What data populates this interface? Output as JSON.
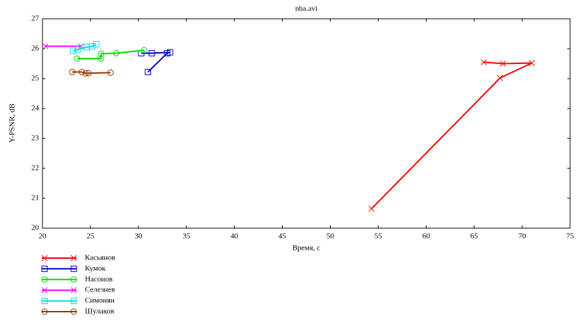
{
  "chart_data": {
    "type": "line",
    "title": "nba.avi",
    "x_label": "Время, с",
    "y_label": "Y-PSNR, dB",
    "xlim": [
      20,
      75
    ],
    "xticks": [
      20,
      25,
      30,
      35,
      40,
      45,
      50,
      55,
      60,
      65,
      70,
      75
    ],
    "ylim": [
      20,
      27
    ],
    "yticks": [
      20,
      21,
      22,
      23,
      24,
      25,
      26,
      27
    ],
    "grid": false,
    "legend": "bottom-left",
    "series": [
      {
        "name": "Касьянов",
        "color": "#ff0000",
        "marker": "x",
        "x": [
          54.3,
          67.7,
          71.0,
          68.0,
          66.0
        ],
        "values": [
          20.65,
          25.02,
          25.52,
          25.5,
          25.55
        ]
      },
      {
        "name": "Кумок",
        "color": "#0000cc",
        "marker": "s",
        "x": [
          30.3,
          31.4,
          33.3,
          33.0,
          31.0
        ],
        "values": [
          25.85,
          25.85,
          25.88,
          25.85,
          25.22
        ]
      },
      {
        "name": "Насонов",
        "color": "#00dd00",
        "marker": "o",
        "x": [
          23.6,
          26.1,
          26.1,
          27.7,
          30.6
        ],
        "values": [
          25.67,
          25.67,
          25.83,
          25.85,
          25.95
        ]
      },
      {
        "name": "Селезнев",
        "color": "#ff00ff",
        "marker": "x",
        "x": [
          20.3,
          24.0
        ],
        "values": [
          26.08,
          26.08
        ]
      },
      {
        "name": "Симонян",
        "color": "#00dddd",
        "marker": "s",
        "x": [
          23.2,
          23.7,
          24.6,
          25.2,
          25.6
        ],
        "values": [
          25.93,
          25.97,
          26.05,
          26.08,
          26.15
        ]
      },
      {
        "name": "Шулаков",
        "color": "#993300",
        "marker": "o",
        "x": [
          23.1,
          24.1,
          24.5,
          24.8,
          27.1
        ],
        "values": [
          25.22,
          25.22,
          25.18,
          25.18,
          25.2
        ]
      }
    ]
  }
}
